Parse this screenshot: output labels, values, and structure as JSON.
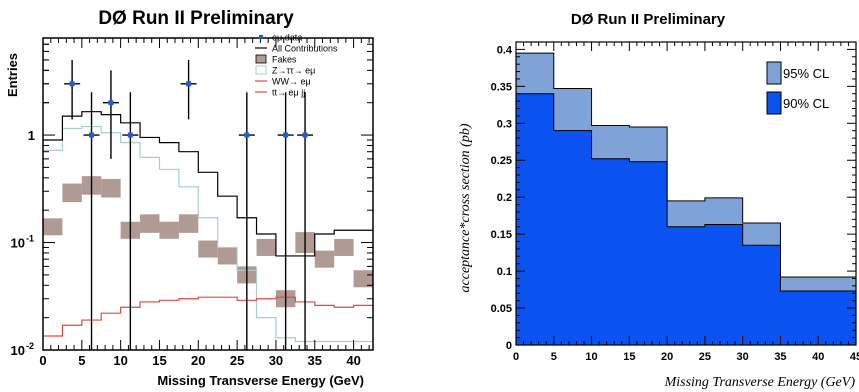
{
  "chart_data": [
    {
      "type": "histogram",
      "title": "DØ Run II Preliminary",
      "xlabel": "Missing Transverse Energy (GeV)",
      "ylabel": "Entries",
      "xlim": [
        0,
        42.5
      ],
      "ylim": [
        0.01,
        8
      ],
      "yscale": "log",
      "x_ticks": [
        "0",
        "5",
        "10",
        "15",
        "20",
        "25",
        "30",
        "35",
        "40"
      ],
      "x_tick_values": [
        0,
        5,
        10,
        15,
        20,
        25,
        30,
        35,
        40
      ],
      "y_ticks": [
        "10",
        "10",
        "1"
      ],
      "y_tick_exponents": [
        "-2",
        "-1",
        ""
      ],
      "y_tick_values": [
        0.01,
        0.1,
        1
      ],
      "legend_position": "top-right",
      "legend": [
        {
          "label": "eμ data",
          "color": "#1e5fd6"
        },
        {
          "label": "All Contributions",
          "color": "#000000"
        },
        {
          "label": "Fakes",
          "color": "#b09a94"
        },
        {
          "label": "Z→ττ→ eμ",
          "color": "#a8cfc8"
        },
        {
          "label": "WW→ eμ",
          "color": "#e04a3e"
        },
        {
          "label": "tt→ eμ jj",
          "color": "#e04a3e"
        }
      ],
      "bin_edges": [
        0,
        2.5,
        5,
        7.5,
        10,
        12.5,
        15,
        17.5,
        20,
        22.5,
        25,
        27.5,
        30,
        32.5,
        35,
        37.5,
        40,
        42.5
      ],
      "series": [
        {
          "name": "All Contributions",
          "kind": "step",
          "values": [
            0.9,
            1.5,
            1.65,
            1.55,
            1.3,
            0.95,
            0.85,
            0.7,
            0.45,
            0.27,
            0.17,
            0.12,
            0.075,
            0.075,
            0.12,
            0.13,
            0.13
          ]
        },
        {
          "name": "Z→ττ→ eμ",
          "kind": "step",
          "values": [
            0.72,
            1.15,
            1.2,
            1.05,
            0.85,
            0.62,
            0.48,
            0.33,
            0.17,
            0.09,
            0.055,
            0.02,
            0.013,
            0.012,
            0.012,
            0.012,
            0.012
          ]
        },
        {
          "name": "WW→ eμ",
          "kind": "step",
          "values": [
            0.0135,
            0.017,
            0.019,
            0.022,
            0.025,
            0.028,
            0.029,
            0.03,
            0.031,
            0.031,
            0.029,
            0.03,
            0.031,
            0.028,
            0.026,
            0.025,
            0.026
          ]
        },
        {
          "name": "Fakes",
          "kind": "band",
          "values": [
            0.14,
            0.29,
            0.34,
            0.32,
            0.13,
            0.15,
            0.13,
            0.15,
            0.087,
            0.075,
            0.05,
            0.09,
            0.03,
            0.1,
            0.07,
            0.09,
            0.046
          ],
          "err_factor": [
            1.2,
            1.22,
            1.22,
            1.22,
            1.2,
            1.22,
            1.2,
            1.22,
            1.2,
            1.2,
            1.2,
            1.2,
            1.2,
            1.25,
            1.2,
            1.2,
            1.2
          ]
        },
        {
          "name": "eμ data",
          "kind": "points",
          "x": [
            3.75,
            6.25,
            8.75,
            11.25,
            18.75,
            26.25,
            31.25,
            33.75
          ],
          "y": [
            3,
            1,
            2,
            1,
            3,
            1,
            1,
            1
          ],
          "err_up": [
            5.0,
            2.5,
            4.0,
            2.5,
            5.0,
            2.5,
            2.5,
            2.5
          ],
          "err_down": [
            1.4,
            0.01,
            0.6,
            0.01,
            1.4,
            0.01,
            0.01,
            0.01
          ]
        }
      ]
    },
    {
      "type": "histogram",
      "title": "DØ Run II Preliminary",
      "xlabel": "Missing Transverse Energy (GeV)",
      "ylabel": "acceptance*cross section (pb)",
      "xlim": [
        0,
        45
      ],
      "ylim": [
        0,
        0.41
      ],
      "x_ticks": [
        "0",
        "5",
        "10",
        "15",
        "20",
        "25",
        "30",
        "35",
        "40",
        "45"
      ],
      "x_tick_values": [
        0,
        5,
        10,
        15,
        20,
        25,
        30,
        35,
        40,
        45
      ],
      "y_ticks": [
        "0",
        "0.05",
        "0.1",
        "0.15",
        "0.2",
        "0.25",
        "0.3",
        "0.35",
        "0.4"
      ],
      "y_tick_values": [
        0,
        0.05,
        0.1,
        0.15,
        0.2,
        0.25,
        0.3,
        0.35,
        0.4
      ],
      "legend_position": "top-right",
      "bin_edges": [
        0,
        2.5,
        5,
        7.5,
        10,
        12.5,
        15,
        17.5,
        20,
        22.5,
        25,
        27.5,
        30,
        32.5,
        35,
        37.5,
        40,
        42.5,
        45
      ],
      "series": [
        {
          "name": "95% CL",
          "color": "#7fa3d6",
          "values": [
            0.395,
            0.395,
            0.347,
            0.347,
            0.297,
            0.297,
            0.295,
            0.295,
            0.195,
            0.195,
            0.199,
            0.199,
            0.165,
            0.165,
            0.092,
            0.092,
            0.092,
            0.092
          ]
        },
        {
          "name": "90% CL",
          "color": "#0a53f0",
          "values": [
            0.34,
            0.34,
            0.29,
            0.29,
            0.252,
            0.252,
            0.248,
            0.248,
            0.16,
            0.16,
            0.163,
            0.163,
            0.135,
            0.135,
            0.073,
            0.073,
            0.073,
            0.073
          ]
        }
      ]
    }
  ]
}
